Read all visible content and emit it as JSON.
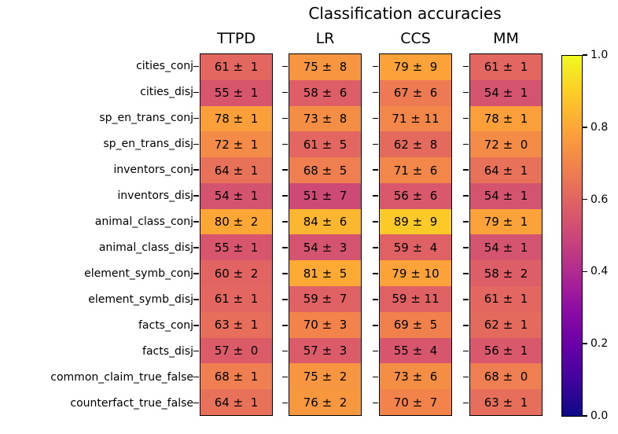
{
  "title": "Classification accuracies",
  "chart_data": {
    "type": "heatmap",
    "title": "Classification accuracies",
    "columns": [
      "TTPD",
      "LR",
      "CCS",
      "MM"
    ],
    "rows": [
      "cities_conj",
      "cities_disj",
      "sp_en_trans_conj",
      "sp_en_trans_disj",
      "inventors_conj",
      "inventors_disj",
      "animal_class_conj",
      "animal_class_disj",
      "element_symb_conj",
      "element_symb_disj",
      "facts_conj",
      "facts_disj",
      "common_claim_true_false",
      "counterfact_true_false"
    ],
    "series": [
      {
        "name": "TTPD",
        "values": [
          61,
          55,
          78,
          72,
          64,
          54,
          80,
          55,
          60,
          61,
          63,
          57,
          68,
          64
        ],
        "errors": [
          1,
          1,
          1,
          1,
          1,
          1,
          2,
          1,
          2,
          1,
          1,
          0,
          1,
          1
        ]
      },
      {
        "name": "LR",
        "values": [
          75,
          58,
          73,
          61,
          68,
          51,
          84,
          54,
          81,
          59,
          70,
          57,
          75,
          76
        ],
        "errors": [
          8,
          6,
          8,
          5,
          5,
          7,
          6,
          3,
          5,
          7,
          3,
          3,
          2,
          2
        ]
      },
      {
        "name": "CCS",
        "values": [
          79,
          67,
          71,
          62,
          71,
          56,
          89,
          59,
          79,
          59,
          69,
          55,
          73,
          70
        ],
        "errors": [
          9,
          6,
          11,
          8,
          6,
          6,
          9,
          4,
          10,
          11,
          5,
          4,
          6,
          7
        ]
      },
      {
        "name": "MM",
        "values": [
          61,
          54,
          78,
          72,
          64,
          54,
          79,
          54,
          58,
          61,
          62,
          56,
          68,
          63
        ],
        "errors": [
          1,
          1,
          1,
          0,
          1,
          1,
          1,
          1,
          2,
          1,
          1,
          1,
          0,
          1
        ]
      }
    ],
    "cell_label_format": "{value} ± {error}",
    "value_range_for_color": [
      0,
      100
    ],
    "colormap": "plasma",
    "grid": false,
    "legend_position": "right-colorbar",
    "colorbar": {
      "min": 0.0,
      "max": 1.0,
      "tick_labels": [
        "0.0",
        "0.2",
        "0.4",
        "0.6",
        "0.8",
        "1.0"
      ]
    }
  },
  "colors": {
    "background": "#ffffff",
    "cell_text": "#000000",
    "axis": "#000000",
    "plasma_stops": [
      "#0d0887",
      "#41049d",
      "#6a00a8",
      "#8f0da4",
      "#b12a90",
      "#cc4778",
      "#e16462",
      "#f2844b",
      "#fca636",
      "#fcce25",
      "#f0f921"
    ]
  }
}
